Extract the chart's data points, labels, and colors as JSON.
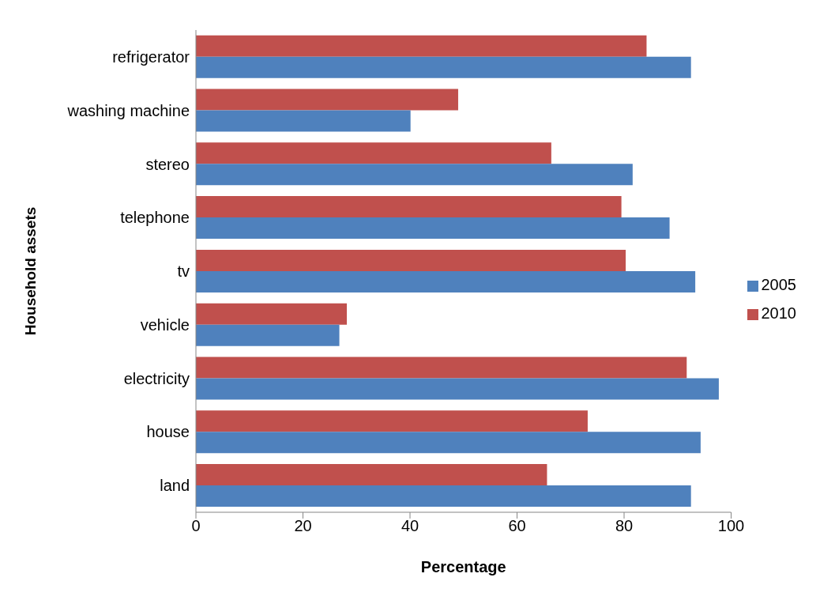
{
  "chart_data": {
    "type": "bar",
    "orientation": "horizontal",
    "xlabel": "Percentage",
    "ylabel": "Household assets",
    "categories": [
      "refrigerator",
      "washing machine",
      "stereo",
      "telephone",
      "tv",
      "vehicle",
      "electricity",
      "house",
      "land"
    ],
    "series": [
      {
        "name": "2010",
        "color": "#c0504d",
        "values": [
          84.2,
          49.0,
          66.4,
          79.5,
          80.3,
          28.2,
          91.7,
          73.2,
          65.6
        ]
      },
      {
        "name": "2005",
        "color": "#4f81bd",
        "values": [
          92.5,
          40.1,
          81.6,
          88.5,
          93.3,
          26.8,
          97.7,
          94.3,
          92.5
        ]
      }
    ],
    "xlim": [
      0,
      100
    ],
    "xticks": [
      0,
      20,
      40,
      60,
      80,
      100
    ],
    "grid": false,
    "legend": "right"
  }
}
